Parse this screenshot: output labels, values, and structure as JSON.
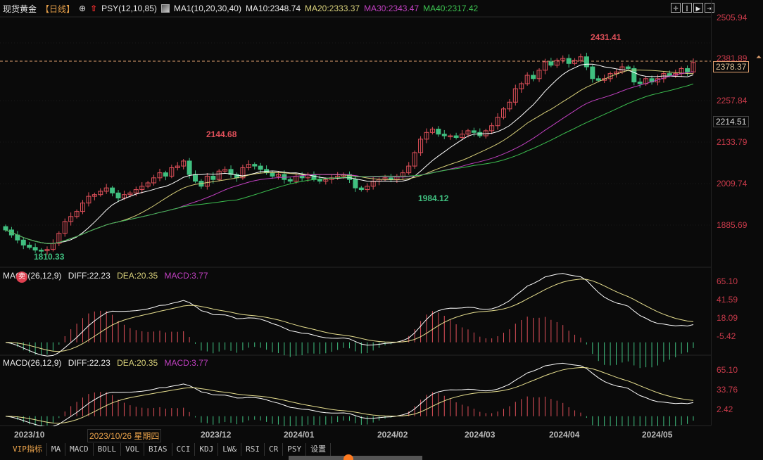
{
  "header": {
    "title": "现货黄金",
    "period": "【日线】",
    "psy_label": "PSY(12,10,85)",
    "ma_label": "MA1(10,20,30,40)",
    "ma10": "MA10:2348.74",
    "ma20": "MA20:2333.37",
    "ma30": "MA30:2343.47",
    "ma40": "MA40:2317.42"
  },
  "toolbar": {
    "crosshair": "✛",
    "zoom_in": "⫿",
    "play": "▶",
    "end": "⇥"
  },
  "price_axis": {
    "labels": [
      "2505.94",
      "2381.89",
      "2257.84",
      "2133.79",
      "2009.74",
      "1885.69"
    ],
    "current_price": "2378.37",
    "crosshair_price": "2214.51"
  },
  "annotations": {
    "high1": "2144.68",
    "high2": "2431.41",
    "low1": "1810.33",
    "low2": "1984.12"
  },
  "macd1": {
    "label": "MACD(26,12,9)",
    "diff": "DIFF:22.23",
    "dea": "DEA:20.35",
    "macd": "MACD:3.77",
    "axis": [
      "65.10",
      "41.59",
      "18.09",
      "-5.42"
    ],
    "sell_badge": "卖"
  },
  "macd2": {
    "label": "MACD(26,12,9)",
    "diff": "DIFF:22.23",
    "dea": "DEA:20.35",
    "macd": "MACD:3.77",
    "axis": [
      "65.10",
      "33.76",
      "2.42"
    ]
  },
  "xaxis": {
    "labels": [
      "2023/10",
      "2023/12",
      "2024/01",
      "2024/02",
      "2024/03",
      "2024/04",
      "2024/05"
    ],
    "cursor_date": "2023/10/26 星期四"
  },
  "tabs": [
    "VIP指标",
    "MA",
    "MACD",
    "BOLL",
    "VOL",
    "BIAS",
    "CCI",
    "KDJ",
    "LW&",
    "RSI",
    "CR",
    "PSY",
    "设置"
  ],
  "colors": {
    "up": "#e0505a",
    "down": "#40c080",
    "ma10": "#ffffff",
    "ma20": "#d8d07a",
    "ma30": "#c040c0",
    "ma40": "#3cc050",
    "axis_label": "#c83a4a"
  },
  "chart_data": {
    "type": "candlestick",
    "title": "现货黄金 日线",
    "x_range": [
      "2023/09",
      "2024/05"
    ],
    "y_axis_ticks": [
      1885.69,
      2009.74,
      2133.79,
      2257.84,
      2381.89,
      2505.94
    ],
    "current_price": 2378.37,
    "annotated_extremes": [
      {
        "label": "low",
        "date": "2023/10",
        "value": 1810.33
      },
      {
        "label": "high",
        "date": "2023/12",
        "value": 2144.68
      },
      {
        "label": "low",
        "date": "2024/02",
        "value": 1984.12
      },
      {
        "label": "high",
        "date": "2024/04",
        "value": 2431.41
      }
    ],
    "close_series": [
      1880,
      1865,
      1850,
      1835,
      1828,
      1820,
      1818,
      1822,
      1840,
      1870,
      1905,
      1920,
      1935,
      1960,
      1980,
      1985,
      1995,
      2005,
      1990,
      1975,
      1985,
      1990,
      2000,
      2010,
      2020,
      2035,
      2050,
      2040,
      2065,
      2070,
      2085,
      2045,
      2025,
      2010,
      2040,
      2030,
      2055,
      2060,
      2045,
      2035,
      2065,
      2075,
      2070,
      2060,
      2050,
      2040,
      2045,
      2030,
      2025,
      2040,
      2035,
      2045,
      2030,
      2025,
      2030,
      2035,
      2040,
      2045,
      2030,
      2005,
      2000,
      2010,
      2025,
      2030,
      2035,
      2030,
      2040,
      2050,
      2070,
      2110,
      2150,
      2170,
      2180,
      2165,
      2160,
      2160,
      2155,
      2165,
      2175,
      2170,
      2160,
      2175,
      2190,
      2215,
      2240,
      2260,
      2300,
      2315,
      2340,
      2330,
      2355,
      2380,
      2370,
      2385,
      2390,
      2375,
      2385,
      2395,
      2365,
      2330,
      2325,
      2330,
      2345,
      2350,
      2365,
      2360,
      2320,
      2315,
      2330,
      2320,
      2330,
      2345,
      2340,
      2345,
      2360,
      2350,
      2378
    ],
    "series": [
      {
        "name": "MA10",
        "last": 2348.74
      },
      {
        "name": "MA20",
        "last": 2333.37
      },
      {
        "name": "MA30",
        "last": 2343.47
      },
      {
        "name": "MA40",
        "last": 2317.42
      }
    ],
    "macd": {
      "diff": 22.23,
      "dea": 20.35,
      "macd": 3.77,
      "ylim": [
        -5.42,
        65.1
      ]
    }
  }
}
